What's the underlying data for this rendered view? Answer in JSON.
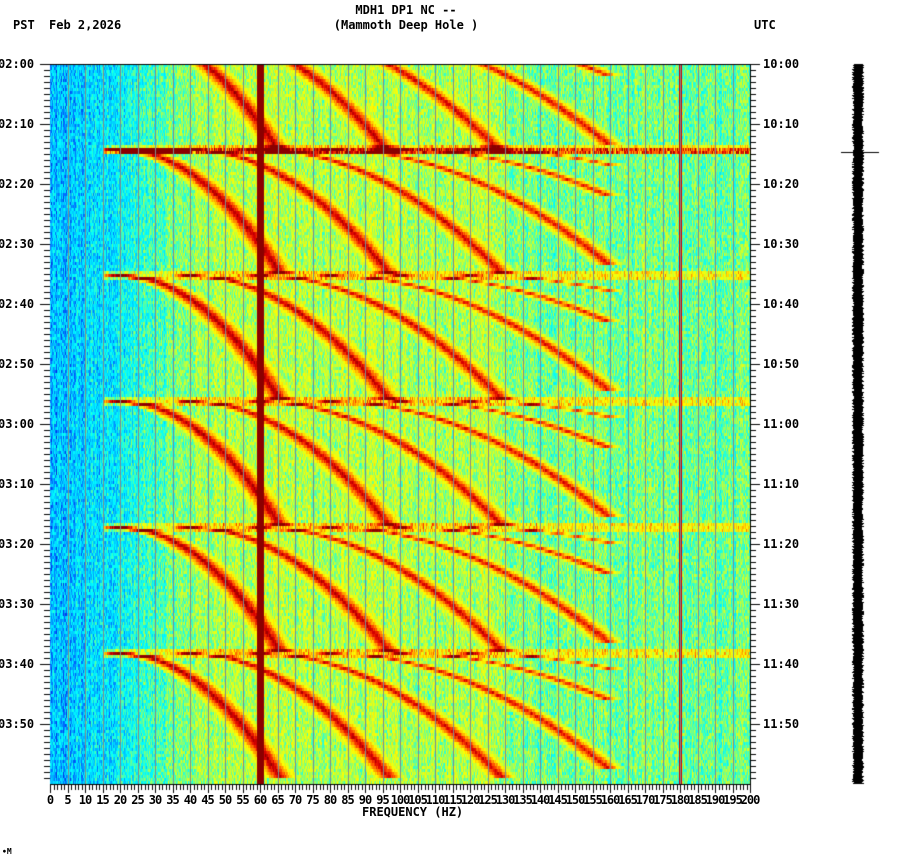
{
  "header": {
    "station_line": "MDH1 DP1 NC --",
    "station_name": "(Mammoth Deep Hole )",
    "left_timezone": "PST",
    "date": "Feb 2,2026",
    "right_timezone": "UTC"
  },
  "footer": {
    "mark": "∙M"
  },
  "colors": {
    "background": "#ffffff",
    "axis": "#000000",
    "gridline": "#808c8c",
    "colormap": [
      "#0000c8",
      "#0064ff",
      "#00c8ff",
      "#00ffff",
      "#64ff96",
      "#c8ff32",
      "#ffff00",
      "#ffb400",
      "#ff5000",
      "#dc0000",
      "#8b0000"
    ]
  },
  "chart_data": {
    "type": "heatmap",
    "title": "MDH1 DP1 NC -- (Mammoth Deep Hole )",
    "subtitle": "Feb 2,2026",
    "xlabel": "FREQUENCY (HZ)",
    "ylabel_left": "PST",
    "ylabel_right": "UTC",
    "xlim": [
      0,
      200
    ],
    "x_ticks": [
      "0",
      "5",
      "10",
      "15",
      "20",
      "25",
      "30",
      "35",
      "40",
      "45",
      "50",
      "55",
      "60",
      "65",
      "70",
      "75",
      "80",
      "85",
      "90",
      "95",
      "100",
      "105",
      "110",
      "115",
      "120",
      "125",
      "130",
      "135",
      "140",
      "145",
      "150",
      "155",
      "160",
      "165",
      "170",
      "175",
      "180",
      "185",
      "190",
      "195",
      "200"
    ],
    "x_minor_tick_step": 1,
    "gridlines_every_hz": 5,
    "y_ticks_left": [
      "02:00",
      "02:10",
      "02:20",
      "02:30",
      "02:40",
      "02:50",
      "03:00",
      "03:10",
      "03:20",
      "03:30",
      "03:40",
      "03:50"
    ],
    "y_ticks_right": [
      "10:00",
      "10:10",
      "10:20",
      "10:30",
      "10:40",
      "10:50",
      "11:00",
      "11:10",
      "11:20",
      "11:30",
      "11:40",
      "11:50"
    ],
    "y_minor_tick_step_minutes": 1,
    "time_span_minutes": 120,
    "persistent_lines_hz": [
      60,
      180
    ],
    "notable_horizontal_events_minutes": [
      14,
      35,
      56,
      77,
      98
    ],
    "sweep_start_minutes": [
      -6,
      14,
      35,
      56,
      77,
      98
    ],
    "sweep_period_minutes": 21,
    "description": "Spectrogram with repeating ~21 min frequency-gliding harmonic sweeps (dark red arcs) over 0-200 Hz; low-frequency band (0-20 Hz) mostly blue, mid/high bands cyan-yellow; strong 60 Hz line.",
    "waveform_trace": {
      "marker_minute": 14.7
    }
  }
}
